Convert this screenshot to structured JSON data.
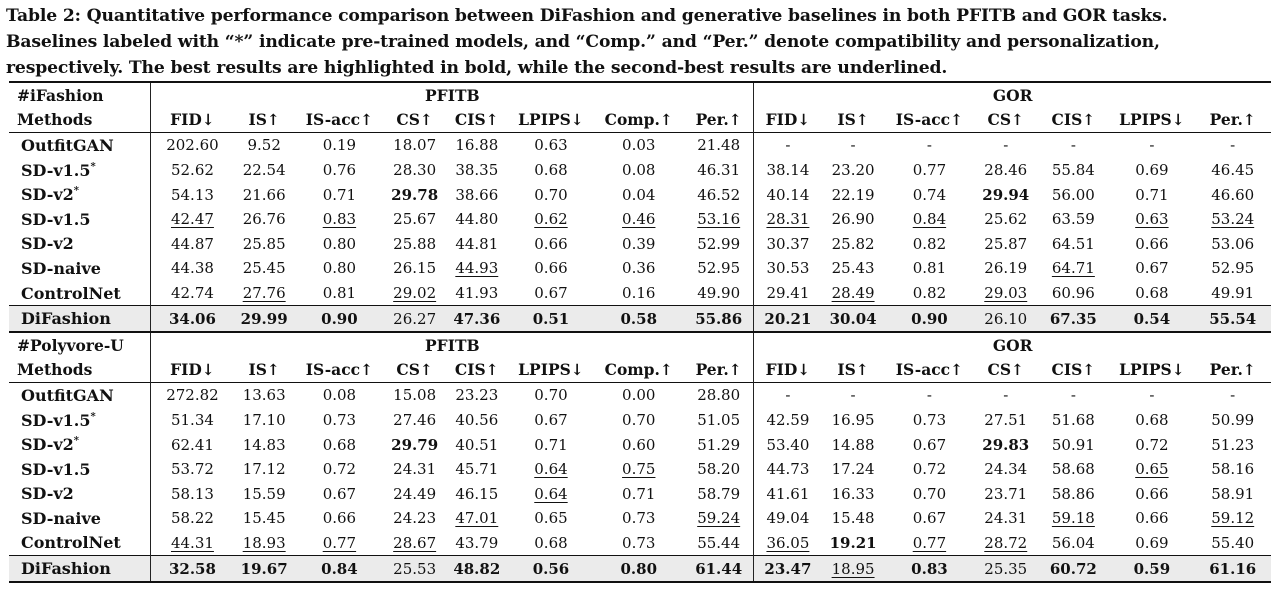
{
  "caption": [
    "Table 2: Quantitative performance comparison between DiFashion and generative baselines in both PFITB and GOR tasks.",
    "Baselines labeled with “*” indicate pre-trained models, and “Comp.” and “Per.” denote compatibility and personalization,",
    "respectively. The best results are highlighted in bold, while the second-best results are underlined."
  ],
  "columns": [
    "FID↓",
    "IS↑",
    "IS-acc↑",
    "CS↑",
    "CIS↑",
    "LPIPS↓",
    "Comp.↑",
    "Per.↑",
    "FID↓",
    "IS↑",
    "IS-acc↑",
    "CS↑",
    "CIS↑",
    "LPIPS↓",
    "Per.↑"
  ],
  "methods_label": "Methods",
  "task1": "PFITB",
  "task2": "GOR",
  "sections": [
    {
      "dataset": "#iFashion",
      "rows": [
        {
          "method": "OutfitGAN",
          "sup": "",
          "values": [
            "202.60",
            "9.52",
            "0.19",
            "18.07",
            "16.88",
            "0.63",
            "0.03",
            "21.48",
            "-",
            "-",
            "-",
            "-",
            "-",
            "-",
            "-"
          ],
          "fmt": [
            "",
            "",
            "",
            "",
            "",
            "",
            "",
            "",
            "",
            "",
            "",
            "",
            "",
            "",
            ""
          ]
        },
        {
          "method": "SD-v1.5",
          "sup": "*",
          "values": [
            "52.62",
            "22.54",
            "0.76",
            "28.30",
            "38.35",
            "0.68",
            "0.08",
            "46.31",
            "38.14",
            "23.20",
            "0.77",
            "28.46",
            "55.84",
            "0.69",
            "46.45"
          ],
          "fmt": [
            "",
            "",
            "",
            "",
            "",
            "",
            "",
            "",
            "",
            "",
            "",
            "",
            "",
            "",
            ""
          ]
        },
        {
          "method": "SD-v2",
          "sup": "*",
          "values": [
            "54.13",
            "21.66",
            "0.71",
            "29.78",
            "38.66",
            "0.70",
            "0.04",
            "46.52",
            "40.14",
            "22.19",
            "0.74",
            "29.94",
            "56.00",
            "0.71",
            "46.60"
          ],
          "fmt": [
            "",
            "",
            "",
            "b",
            "",
            "",
            "",
            "",
            "",
            "",
            "",
            "b",
            "",
            "",
            ""
          ]
        },
        {
          "method": "SD-v1.5",
          "sup": "",
          "values": [
            "42.47",
            "26.76",
            "0.83",
            "25.67",
            "44.80",
            "0.62",
            "0.46",
            "53.16",
            "28.31",
            "26.90",
            "0.84",
            "25.62",
            "63.59",
            "0.63",
            "53.24"
          ],
          "fmt": [
            "u",
            "",
            "u",
            "",
            "",
            "u",
            "u",
            "u",
            "u",
            "",
            "u",
            "",
            "",
            "u",
            "u"
          ]
        },
        {
          "method": "SD-v2",
          "sup": "",
          "values": [
            "44.87",
            "25.85",
            "0.80",
            "25.88",
            "44.81",
            "0.66",
            "0.39",
            "52.99",
            "30.37",
            "25.82",
            "0.82",
            "25.87",
            "64.51",
            "0.66",
            "53.06"
          ],
          "fmt": [
            "",
            "",
            "",
            "",
            "",
            "",
            "",
            "",
            "",
            "",
            "",
            "",
            "",
            "",
            ""
          ]
        },
        {
          "method": "SD-naive",
          "sup": "",
          "values": [
            "44.38",
            "25.45",
            "0.80",
            "26.15",
            "44.93",
            "0.66",
            "0.36",
            "52.95",
            "30.53",
            "25.43",
            "0.81",
            "26.19",
            "64.71",
            "0.67",
            "52.95"
          ],
          "fmt": [
            "",
            "",
            "",
            "",
            "u",
            "",
            "",
            "",
            "",
            "",
            "",
            "",
            "u",
            "",
            ""
          ]
        },
        {
          "method": "ControlNet",
          "sup": "",
          "values": [
            "42.74",
            "27.76",
            "0.81",
            "29.02",
            "41.93",
            "0.67",
            "0.16",
            "49.90",
            "29.41",
            "28.49",
            "0.82",
            "29.03",
            "60.96",
            "0.68",
            "49.91"
          ],
          "fmt": [
            "",
            "u",
            "",
            "u",
            "",
            "",
            "",
            "",
            "",
            "u",
            "",
            "u",
            "",
            "",
            ""
          ]
        },
        {
          "method": "DiFashion",
          "sup": "",
          "values": [
            "34.06",
            "29.99",
            "0.90",
            "26.27",
            "47.36",
            "0.51",
            "0.58",
            "55.86",
            "20.21",
            "30.04",
            "0.90",
            "26.10",
            "67.35",
            "0.54",
            "55.54"
          ],
          "fmt": [
            "b",
            "b",
            "b",
            "",
            "b",
            "b",
            "b",
            "b",
            "b",
            "b",
            "b",
            "",
            "b",
            "b",
            "b"
          ],
          "ours": true
        }
      ]
    },
    {
      "dataset": "#Polyvore-U",
      "rows": [
        {
          "method": "OutfitGAN",
          "sup": "",
          "values": [
            "272.82",
            "13.63",
            "0.08",
            "15.08",
            "23.23",
            "0.70",
            "0.00",
            "28.80",
            "-",
            "-",
            "-",
            "-",
            "-",
            "-",
            "-"
          ],
          "fmt": [
            "",
            "",
            "",
            "",
            "",
            "",
            "",
            "",
            "",
            "",
            "",
            "",
            "",
            "",
            ""
          ]
        },
        {
          "method": "SD-v1.5",
          "sup": "*",
          "values": [
            "51.34",
            "17.10",
            "0.73",
            "27.46",
            "40.56",
            "0.67",
            "0.70",
            "51.05",
            "42.59",
            "16.95",
            "0.73",
            "27.51",
            "51.68",
            "0.68",
            "50.99"
          ],
          "fmt": [
            "",
            "",
            "",
            "",
            "",
            "",
            "",
            "",
            "",
            "",
            "",
            "",
            "",
            "",
            ""
          ]
        },
        {
          "method": "SD-v2",
          "sup": "*",
          "values": [
            "62.41",
            "14.83",
            "0.68",
            "29.79",
            "40.51",
            "0.71",
            "0.60",
            "51.29",
            "53.40",
            "14.88",
            "0.67",
            "29.83",
            "50.91",
            "0.72",
            "51.23"
          ],
          "fmt": [
            "",
            "",
            "",
            "b",
            "",
            "",
            "",
            "",
            "",
            "",
            "",
            "b",
            "",
            "",
            ""
          ]
        },
        {
          "method": "SD-v1.5",
          "sup": "",
          "values": [
            "53.72",
            "17.12",
            "0.72",
            "24.31",
            "45.71",
            "0.64",
            "0.75",
            "58.20",
            "44.73",
            "17.24",
            "0.72",
            "24.34",
            "58.68",
            "0.65",
            "58.16"
          ],
          "fmt": [
            "",
            "",
            "",
            "",
            "",
            "u",
            "u",
            "",
            "",
            "",
            "",
            "",
            "",
            "u",
            ""
          ]
        },
        {
          "method": "SD-v2",
          "sup": "",
          "values": [
            "58.13",
            "15.59",
            "0.67",
            "24.49",
            "46.15",
            "0.64",
            "0.71",
            "58.79",
            "41.61",
            "16.33",
            "0.70",
            "23.71",
            "58.86",
            "0.66",
            "58.91"
          ],
          "fmt": [
            "",
            "",
            "",
            "",
            "",
            "u",
            "",
            "",
            "",
            "",
            "",
            "",
            "",
            "",
            ""
          ]
        },
        {
          "method": "SD-naive",
          "sup": "",
          "values": [
            "58.22",
            "15.45",
            "0.66",
            "24.23",
            "47.01",
            "0.65",
            "0.73",
            "59.24",
            "49.04",
            "15.48",
            "0.67",
            "24.31",
            "59.18",
            "0.66",
            "59.12"
          ],
          "fmt": [
            "",
            "",
            "",
            "",
            "u",
            "",
            "",
            "u",
            "",
            "",
            "",
            "",
            "u",
            "",
            "u"
          ]
        },
        {
          "method": "ControlNet",
          "sup": "",
          "values": [
            "44.31",
            "18.93",
            "0.77",
            "28.67",
            "43.79",
            "0.68",
            "0.73",
            "55.44",
            "36.05",
            "19.21",
            "0.77",
            "28.72",
            "56.04",
            "0.69",
            "55.40"
          ],
          "fmt": [
            "u",
            "u",
            "u",
            "u",
            "",
            "",
            "",
            "",
            "u",
            "b",
            "u",
            "u",
            "",
            "",
            ""
          ]
        },
        {
          "method": "DiFashion",
          "sup": "",
          "values": [
            "32.58",
            "19.67",
            "0.84",
            "25.53",
            "48.82",
            "0.56",
            "0.80",
            "61.44",
            "23.47",
            "18.95",
            "0.83",
            "25.35",
            "60.72",
            "0.59",
            "61.16"
          ],
          "fmt": [
            "b",
            "b",
            "b",
            "",
            "b",
            "b",
            "b",
            "b",
            "b",
            "u",
            "b",
            "",
            "b",
            "b",
            "b"
          ],
          "ours": true
        }
      ]
    }
  ]
}
